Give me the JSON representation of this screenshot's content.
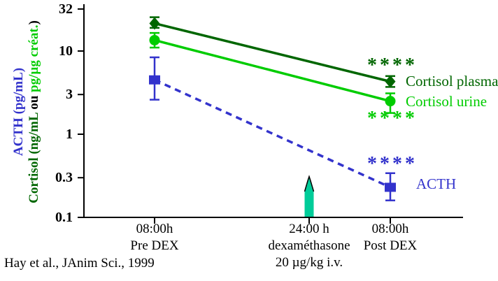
{
  "figure": {
    "background": "#ffffff"
  },
  "citation": "Hay et al., JAnim Sci., 1999",
  "y_axis": {
    "label_acth": "ACTH (pg/mL)",
    "label_acth_color": "#3333CC",
    "label_cortisol_parts": [
      {
        "text": "Cortisol (ng/mL ",
        "color": "#006600"
      },
      {
        "text": "ou",
        "color": "#000000"
      },
      {
        "text": " pg/µg créat.",
        "color": "#00CC00"
      },
      {
        "text": ")",
        "color": "#000000"
      }
    ],
    "tick_labels": [
      "32",
      "10",
      "3",
      "1",
      "0.3",
      "0.1"
    ]
  },
  "x_axis": {
    "tick_groups": [
      {
        "lines": [
          "08:00h",
          "Pre DEX"
        ]
      },
      {
        "lines": [
          "24:00 h",
          "dexaméthasone",
          "20 µg/kg i.v."
        ]
      },
      {
        "lines": [
          "08:00h",
          "Post DEX"
        ]
      }
    ]
  },
  "chart_data": {
    "type": "line",
    "y_scale": "log",
    "ylim": [
      0.1,
      32
    ],
    "y_ticks": [
      32,
      10,
      3,
      1,
      0.3,
      0.1
    ],
    "categories": [
      "08:00h Pre DEX",
      "08:00h Post DEX"
    ],
    "series": [
      {
        "name": "Cortisol plasma",
        "color": "#006600",
        "marker": "diamond",
        "line_style": "solid",
        "values": [
          21.5,
          4.3
        ],
        "error_high": [
          25.5,
          5.0
        ],
        "error_low": [
          19.0,
          3.7
        ],
        "significance": "****"
      },
      {
        "name": "Cortisol urine",
        "color": "#00CC00",
        "marker": "circle",
        "line_style": "solid",
        "values": [
          13.5,
          2.5
        ],
        "error_high": [
          16.5,
          3.1
        ],
        "error_low": [
          11.0,
          1.8
        ],
        "significance": "****"
      },
      {
        "name": "ACTH",
        "color": "#3333CC",
        "marker": "square",
        "line_style": "dashed",
        "values": [
          4.5,
          0.23
        ],
        "error_high": [
          8.4,
          0.34
        ],
        "error_low": [
          2.6,
          0.16
        ],
        "significance": "****"
      }
    ],
    "event_marker": {
      "x_label": "24:00 h",
      "description": "dexaméthasone 20 µg/kg i.v.",
      "color": "#00CC99"
    }
  }
}
